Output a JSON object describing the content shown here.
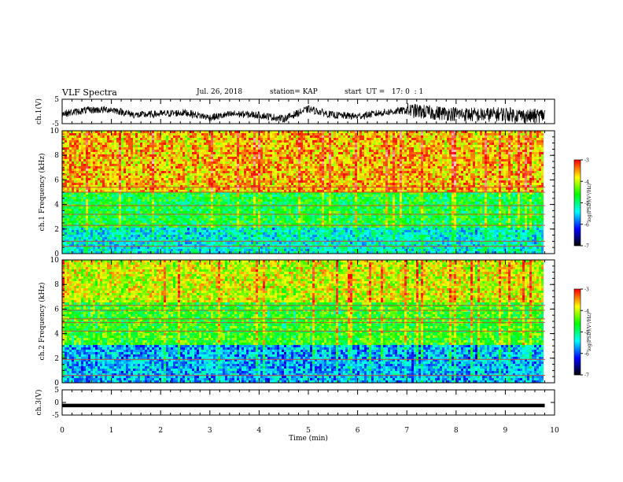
{
  "header": {
    "title": "VLF Spectra",
    "date": "Jul. 26, 2018",
    "station": "station= KAP",
    "start": "start  UT =   17: 0  : 1"
  },
  "colors": {
    "ramp": [
      "#000000",
      "#0000ff",
      "#00ffff",
      "#00ff00",
      "#ffff00",
      "#ff0000",
      "#ffffff"
    ],
    "trace": "#000000"
  },
  "chart_data": [
    {
      "type": "line",
      "panel": "ch1-waveform",
      "ylabel": "ch.1(V)",
      "ylim": [
        -5,
        5
      ],
      "yticks": [
        "5",
        "-5"
      ],
      "xlim": [
        0,
        10
      ],
      "series": [
        {
          "x": [
            0,
            0.5,
            1,
            1.5,
            2,
            2.5,
            3,
            3.5,
            4,
            4.5,
            5,
            5.5,
            6,
            6.5,
            7,
            7.5,
            8,
            8.5,
            9,
            9.5,
            9.8
          ],
          "y": [
            -1.0,
            0.5,
            0.8,
            -1.5,
            -1.0,
            -0.5,
            -2.5,
            -1.0,
            -1.5,
            -3.0,
            1.0,
            -1.5,
            -2.0,
            -0.5,
            0.5,
            -0.5,
            -1.0,
            -1.5,
            -1.0,
            -2.0,
            -1.5
          ]
        }
      ]
    },
    {
      "type": "heatmap",
      "panel": "ch1-spectrogram",
      "ylabel": "ch.1 Frequency (kHz)",
      "ylim": [
        0,
        10
      ],
      "yticks": [
        "0",
        "2",
        "4",
        "6",
        "8",
        "10"
      ],
      "xlim": [
        0,
        9.8
      ],
      "colorbar": {
        "label": "log(PSD)(V²/Hz)",
        "ticks": [
          "-3",
          "-4",
          "-5",
          "-6",
          "-7"
        ],
        "range": [
          -7,
          -3
        ]
      },
      "bands_kHz": [
        {
          "from": 0,
          "to": 2.2,
          "log_psd": -5.3
        },
        {
          "from": 2.2,
          "to": 5.0,
          "log_psd": -4.7
        },
        {
          "from": 5.0,
          "to": 10,
          "log_psd": -3.6
        }
      ],
      "lines_kHz": [
        0.6,
        1.0,
        2.3,
        3.2,
        3.9,
        5.0,
        5.4
      ]
    },
    {
      "type": "heatmap",
      "panel": "ch2-spectrogram",
      "ylabel": "ch.2 Frequency (kHz)",
      "ylim": [
        0,
        10
      ],
      "yticks": [
        "0",
        "2",
        "4",
        "6",
        "8",
        "10"
      ],
      "xlim": [
        0,
        9.8
      ],
      "colorbar": {
        "label": "log(PSD)(V²/Hz)",
        "ticks": [
          "-3",
          "-4",
          "-5",
          "-6",
          "-7"
        ],
        "range": [
          -7,
          -3
        ]
      },
      "bands_kHz": [
        {
          "from": 0,
          "to": 3.0,
          "log_psd": -5.6
        },
        {
          "from": 3.0,
          "to": 6.5,
          "log_psd": -4.5
        },
        {
          "from": 6.5,
          "to": 10,
          "log_psd": -3.9
        }
      ],
      "lines_kHz": [
        0.6,
        1.9,
        4.2,
        4.9,
        5.2,
        5.9,
        6.3
      ]
    },
    {
      "type": "line",
      "panel": "ch3-waveform",
      "ylabel": "ch.3(V)",
      "ylim": [
        -5,
        5
      ],
      "yticks": [
        "5",
        "0",
        "-5"
      ],
      "xlabel": "Time (min)",
      "xlim": [
        0,
        10
      ],
      "xticks": [
        "0",
        "1",
        "2",
        "3",
        "4",
        "5",
        "6",
        "7",
        "8",
        "9",
        "10"
      ],
      "series": [
        {
          "x": [
            0,
            9.8
          ],
          "y": [
            -1.2,
            -1.2
          ]
        }
      ]
    }
  ]
}
